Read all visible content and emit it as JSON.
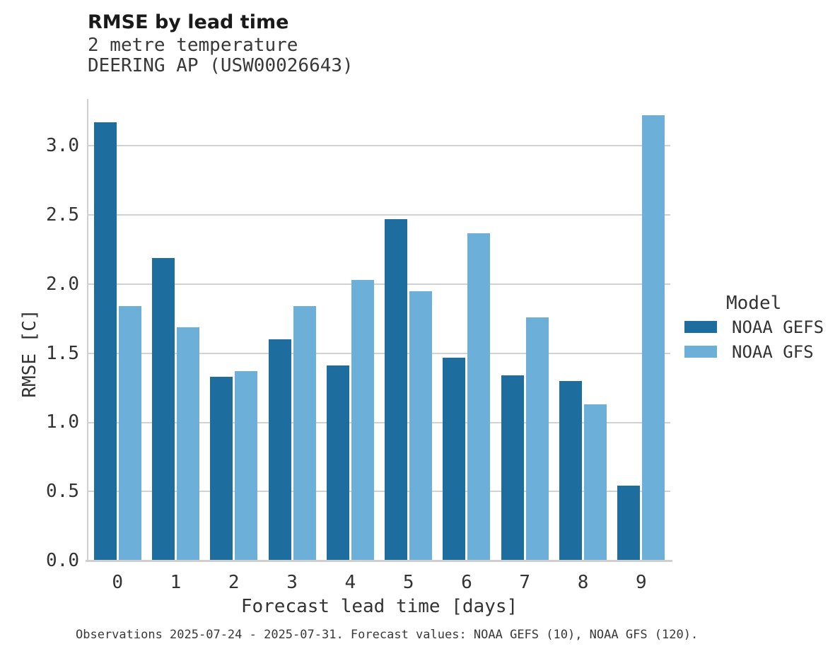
{
  "chart": {
    "title": "RMSE by lead time",
    "subtitle_lines": [
      "2 metre temperature",
      "DEERING AP (USW00026643)"
    ],
    "caption": "Observations 2025-07-24 - 2025-07-31. Forecast values: NOAA GEFS (10), NOAA GFS (120)."
  },
  "chart_data": {
    "type": "bar",
    "title": "RMSE by lead time",
    "subtitle": [
      "2 metre temperature",
      "DEERING AP (USW00026643)"
    ],
    "categories": [
      "0",
      "1",
      "2",
      "3",
      "4",
      "5",
      "6",
      "7",
      "8",
      "9"
    ],
    "series": [
      {
        "name": "NOAA GEFS",
        "color": "#1d6e9e",
        "values": [
          3.17,
          2.19,
          1.33,
          1.6,
          1.41,
          2.47,
          1.47,
          1.34,
          1.3,
          0.54
        ]
      },
      {
        "name": "NOAA GFS",
        "color": "#6cb0d9",
        "values": [
          1.84,
          1.69,
          1.37,
          1.84,
          2.03,
          1.95,
          2.37,
          1.76,
          1.13,
          3.22
        ]
      }
    ],
    "xlabel": "Forecast lead time [days]",
    "ylabel": "RMSE [C]",
    "ylim": [
      0,
      3.34
    ],
    "yticks": [
      "0.0",
      "0.5",
      "1.0",
      "1.5",
      "2.0",
      "2.5",
      "3.0"
    ],
    "grid": true,
    "gridline_color": "#d2d2d2",
    "axis_color": "#cfcfcf",
    "legend_title": "Model",
    "legend_position": "right"
  }
}
